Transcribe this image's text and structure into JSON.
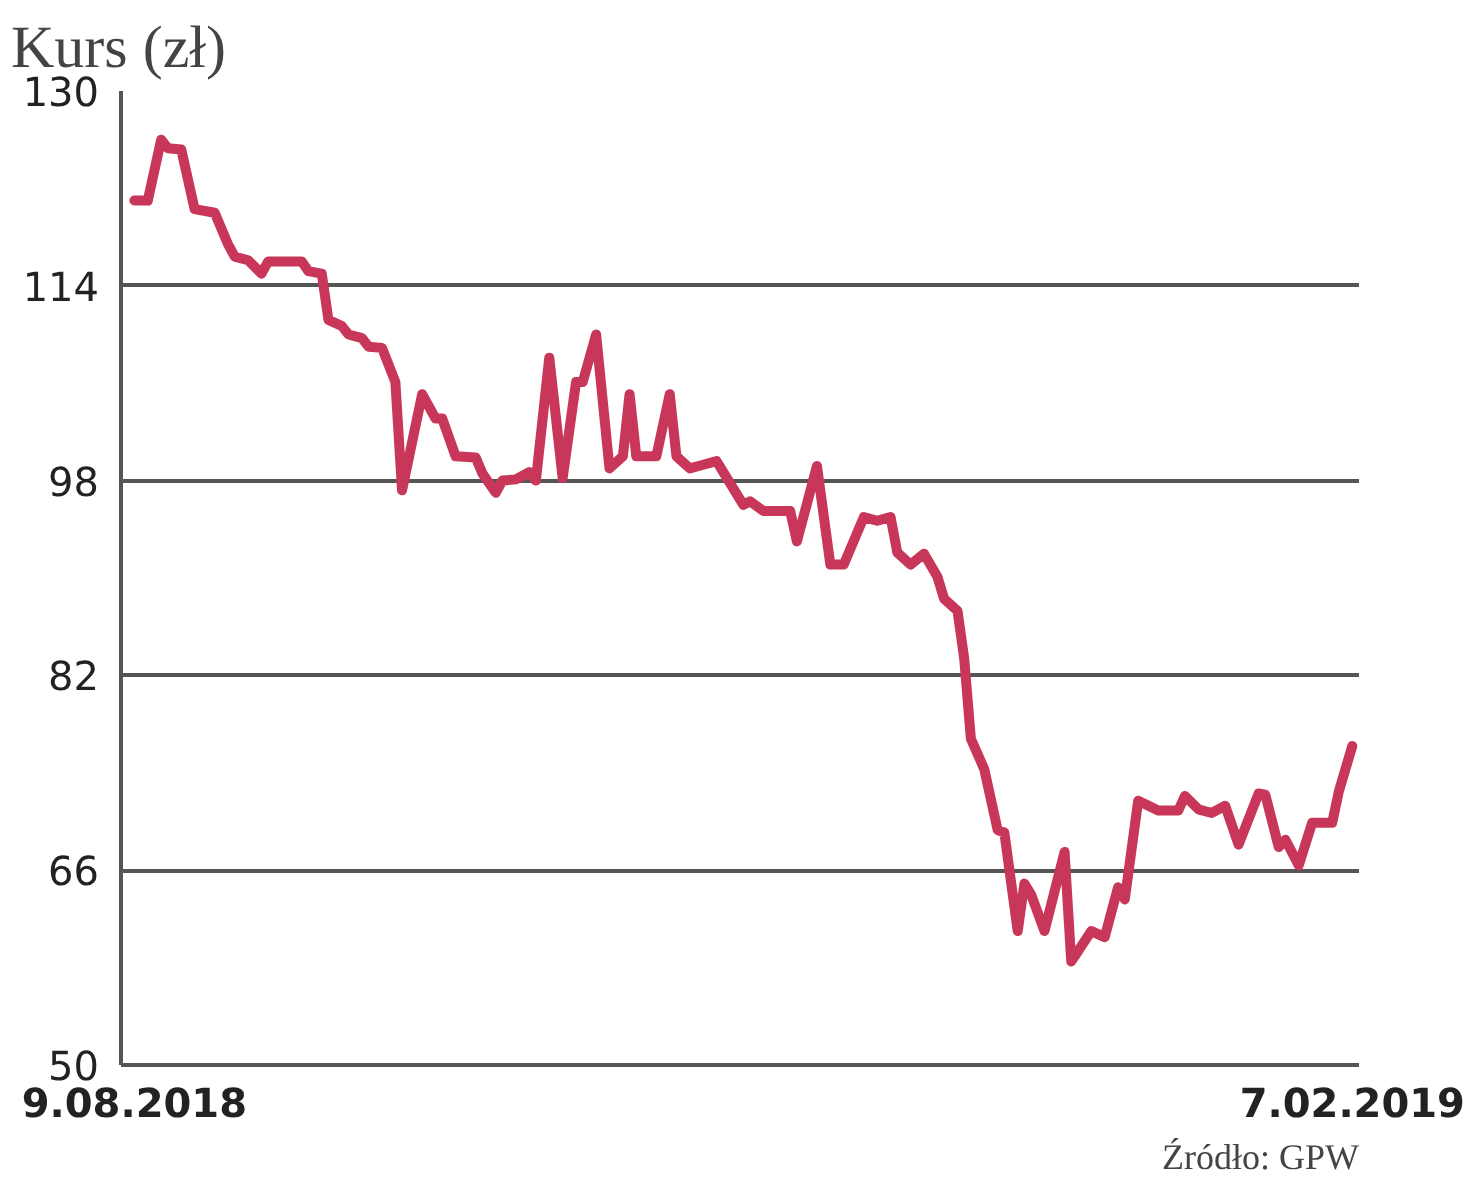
{
  "chart_data": {
    "type": "line",
    "title": "Kurs (zł)",
    "annotations": [
      "Źródło: GPW"
    ],
    "x": [
      "2018-08-09",
      "2018-08-11",
      "2018-08-13",
      "2018-08-14",
      "2018-08-16",
      "2018-08-18",
      "2018-08-21",
      "2018-08-23",
      "2018-08-24",
      "2018-08-26",
      "2018-08-28",
      "2018-08-29",
      "2018-09-03",
      "2018-09-04",
      "2018-09-06",
      "2018-09-07",
      "2018-09-09",
      "2018-09-10",
      "2018-09-12",
      "2018-09-13",
      "2018-09-15",
      "2018-09-17",
      "2018-09-18",
      "2018-09-21",
      "2018-09-23",
      "2018-09-24",
      "2018-09-26",
      "2018-09-29",
      "2018-09-30",
      "2018-10-02",
      "2018-10-03",
      "2018-10-05",
      "2018-10-07",
      "2018-10-08",
      "2018-10-10",
      "2018-10-12",
      "2018-10-14",
      "2018-10-15",
      "2018-10-17",
      "2018-10-19",
      "2018-10-21",
      "2018-10-22",
      "2018-10-23",
      "2018-10-26",
      "2018-10-28",
      "2018-10-29",
      "2018-10-31",
      "2018-11-02",
      "2018-11-04",
      "2018-11-08",
      "2018-11-09",
      "2018-11-11",
      "2018-11-15",
      "2018-11-16",
      "2018-11-19",
      "2018-11-21",
      "2018-11-23",
      "2018-11-26",
      "2018-11-28",
      "2018-11-30",
      "2018-12-01",
      "2018-12-03",
      "2018-12-05",
      "2018-12-07",
      "2018-12-08",
      "2018-12-10",
      "2018-12-11",
      "2018-12-12",
      "2018-12-14",
      "2018-12-16",
      "2018-12-17",
      "2018-12-19",
      "2018-12-20",
      "2018-12-21",
      "2018-12-23",
      "2018-12-26",
      "2018-12-27",
      "2018-12-30",
      "2019-01-01",
      "2019-01-03",
      "2019-01-04",
      "2019-01-06",
      "2019-01-09",
      "2019-01-12",
      "2019-01-13",
      "2019-01-15",
      "2019-01-17",
      "2019-01-19",
      "2019-01-21",
      "2019-01-24",
      "2019-01-25",
      "2019-01-27",
      "2019-01-28",
      "2019-01-30",
      "2019-02-01",
      "2019-02-04",
      "2019-02-05",
      "2019-02-07"
    ],
    "series": [
      {
        "color": "#c8375a",
        "values": [
          121,
          121,
          126,
          125.3,
          125.2,
          120.3,
          120,
          117.4,
          116.4,
          116.1,
          115,
          116,
          116,
          115.2,
          115,
          111.2,
          110.7,
          110,
          109.7,
          109,
          108.9,
          106.1,
          97.2,
          105.1,
          103.1,
          103.1,
          100,
          99.9,
          98.6,
          97,
          98,
          98.1,
          98.7,
          98,
          108.1,
          98.2,
          106.1,
          106.1,
          110,
          99,
          100,
          105.1,
          100,
          100,
          105.1,
          100,
          99,
          99.3,
          99.6,
          96,
          96.3,
          95.5,
          95.5,
          93,
          99.2,
          91.1,
          91.1,
          95,
          94.7,
          95,
          92.1,
          91.1,
          92,
          90.1,
          88.3,
          87.3,
          83.4,
          76.8,
          74.3,
          69.3,
          69.1,
          61,
          64.9,
          64,
          61,
          67.5,
          58.5,
          61,
          60.5,
          64.6,
          63.6,
          71.7,
          70.9,
          70.9,
          72.1,
          71,
          70.7,
          71.3,
          68.1,
          72.3,
          72.2,
          67.9,
          68.5,
          66.4,
          69.9,
          69.9,
          72.5,
          76.2
        ]
      }
    ],
    "xlim": [
      "2018-08-07",
      "2019-02-08"
    ],
    "xticks": [
      {
        "value": "2018-08-09",
        "label": "9.08.2018"
      },
      {
        "value": "2019-02-07",
        "label": "7.02.2019"
      }
    ],
    "ylim": [
      50,
      130
    ],
    "yticks": [
      50,
      66,
      82,
      98,
      114,
      130
    ],
    "grid": "y",
    "line_style": "solid",
    "marker": "none"
  }
}
